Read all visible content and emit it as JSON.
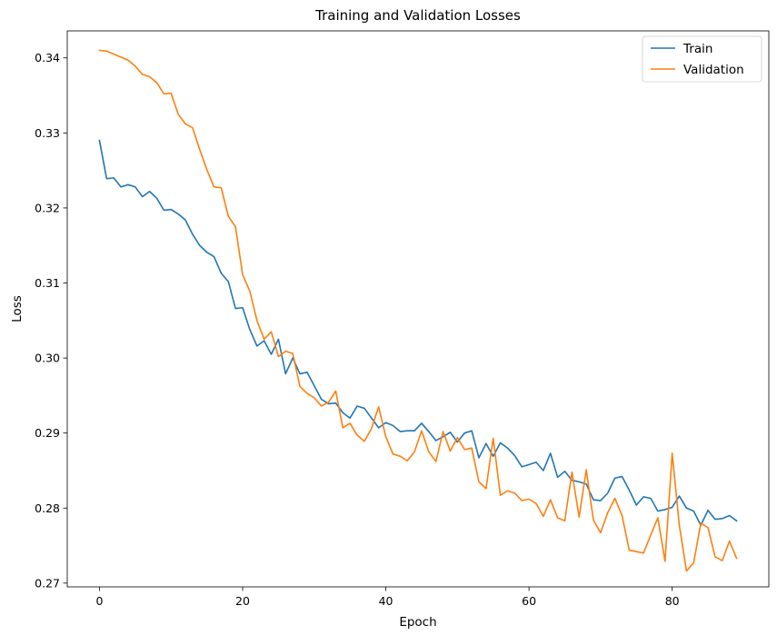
{
  "chart_data": {
    "type": "line",
    "title": "Training and Validation Losses",
    "xlabel": "Epoch",
    "ylabel": "Loss",
    "xlim": [
      -4.5,
      93.5
    ],
    "ylim": [
      0.2695,
      0.3436
    ],
    "xticks": [
      0,
      20,
      40,
      60,
      80
    ],
    "yticks": [
      0.27,
      0.28,
      0.29,
      0.3,
      0.31,
      0.32,
      0.33,
      0.34
    ],
    "grid": false,
    "legend_position": "top-right",
    "series": [
      {
        "name": "Train",
        "color": "#1f77b4",
        "x": [
          0,
          1,
          2,
          3,
          4,
          5,
          6,
          7,
          8,
          9,
          10,
          11,
          12,
          13,
          14,
          15,
          16,
          17,
          18,
          19,
          20,
          21,
          22,
          23,
          24,
          25,
          26,
          27,
          28,
          29,
          30,
          31,
          32,
          33,
          34,
          35,
          36,
          37,
          38,
          39,
          40,
          41,
          42,
          43,
          44,
          45,
          46,
          47,
          48,
          49,
          50,
          51,
          52,
          53,
          54,
          55,
          56,
          57,
          58,
          59,
          60,
          61,
          62,
          63,
          64,
          65,
          66,
          67,
          68,
          69,
          70,
          71,
          72,
          73,
          74,
          75,
          76,
          77,
          78,
          79,
          80,
          81,
          82,
          83,
          84,
          85,
          86,
          87,
          88,
          89
        ],
        "y": [
          0.329,
          0.3239,
          0.324,
          0.3228,
          0.3231,
          0.3228,
          0.3215,
          0.3222,
          0.3213,
          0.3197,
          0.3198,
          0.3192,
          0.3184,
          0.3165,
          0.315,
          0.3141,
          0.3135,
          0.3113,
          0.3102,
          0.3066,
          0.3067,
          0.3038,
          0.3016,
          0.3023,
          0.3005,
          0.3025,
          0.2979,
          0.3,
          0.2979,
          0.2981,
          0.2963,
          0.2945,
          0.2939,
          0.294,
          0.2927,
          0.292,
          0.2936,
          0.2933,
          0.292,
          0.2907,
          0.2914,
          0.291,
          0.2902,
          0.2903,
          0.2903,
          0.2913,
          0.2902,
          0.289,
          0.2895,
          0.2901,
          0.2888,
          0.29,
          0.2903,
          0.2867,
          0.2886,
          0.2869,
          0.2887,
          0.288,
          0.287,
          0.2855,
          0.2858,
          0.2861,
          0.285,
          0.2873,
          0.2841,
          0.2849,
          0.2837,
          0.2835,
          0.2832,
          0.2811,
          0.281,
          0.282,
          0.284,
          0.2842,
          0.2824,
          0.2804,
          0.2815,
          0.2813,
          0.2796,
          0.2798,
          0.2801,
          0.2816,
          0.28,
          0.2796,
          0.2777,
          0.2797,
          0.2785,
          0.2786,
          0.279,
          0.2783
        ]
      },
      {
        "name": "Validation",
        "color": "#ff7f0e",
        "x": [
          0,
          1,
          2,
          3,
          4,
          5,
          6,
          7,
          8,
          9,
          10,
          11,
          12,
          13,
          14,
          15,
          16,
          17,
          18,
          19,
          20,
          21,
          22,
          23,
          24,
          25,
          26,
          27,
          28,
          29,
          30,
          31,
          32,
          33,
          34,
          35,
          36,
          37,
          38,
          39,
          40,
          41,
          42,
          43,
          44,
          45,
          46,
          47,
          48,
          49,
          50,
          51,
          52,
          53,
          54,
          55,
          56,
          57,
          58,
          59,
          60,
          61,
          62,
          63,
          64,
          65,
          66,
          67,
          68,
          69,
          70,
          71,
          72,
          73,
          74,
          75,
          76,
          77,
          78,
          79,
          80,
          81,
          82,
          83,
          84,
          85,
          86,
          87,
          88,
          89
        ],
        "y": [
          0.341,
          0.3409,
          0.3405,
          0.3401,
          0.3397,
          0.3389,
          0.3378,
          0.3375,
          0.3367,
          0.3352,
          0.3353,
          0.3325,
          0.3312,
          0.3307,
          0.3278,
          0.3251,
          0.3228,
          0.3227,
          0.3189,
          0.3175,
          0.3111,
          0.3089,
          0.305,
          0.3025,
          0.3035,
          0.3002,
          0.3009,
          0.3006,
          0.2962,
          0.2953,
          0.2947,
          0.2936,
          0.2941,
          0.2956,
          0.2907,
          0.2913,
          0.2897,
          0.2889,
          0.2906,
          0.2935,
          0.2895,
          0.2872,
          0.2869,
          0.2863,
          0.2875,
          0.2903,
          0.2875,
          0.2862,
          0.2902,
          0.2876,
          0.2894,
          0.2878,
          0.288,
          0.2835,
          0.2826,
          0.2893,
          0.2817,
          0.2823,
          0.282,
          0.281,
          0.2812,
          0.2806,
          0.2789,
          0.2811,
          0.2787,
          0.2783,
          0.2848,
          0.2788,
          0.2851,
          0.2784,
          0.2767,
          0.2794,
          0.2813,
          0.279,
          0.2744,
          0.2742,
          0.274,
          0.2764,
          0.2787,
          0.2729,
          0.2873,
          0.2777,
          0.2716,
          0.2727,
          0.278,
          0.2774,
          0.2735,
          0.273,
          0.2756,
          0.2733
        ]
      }
    ]
  }
}
